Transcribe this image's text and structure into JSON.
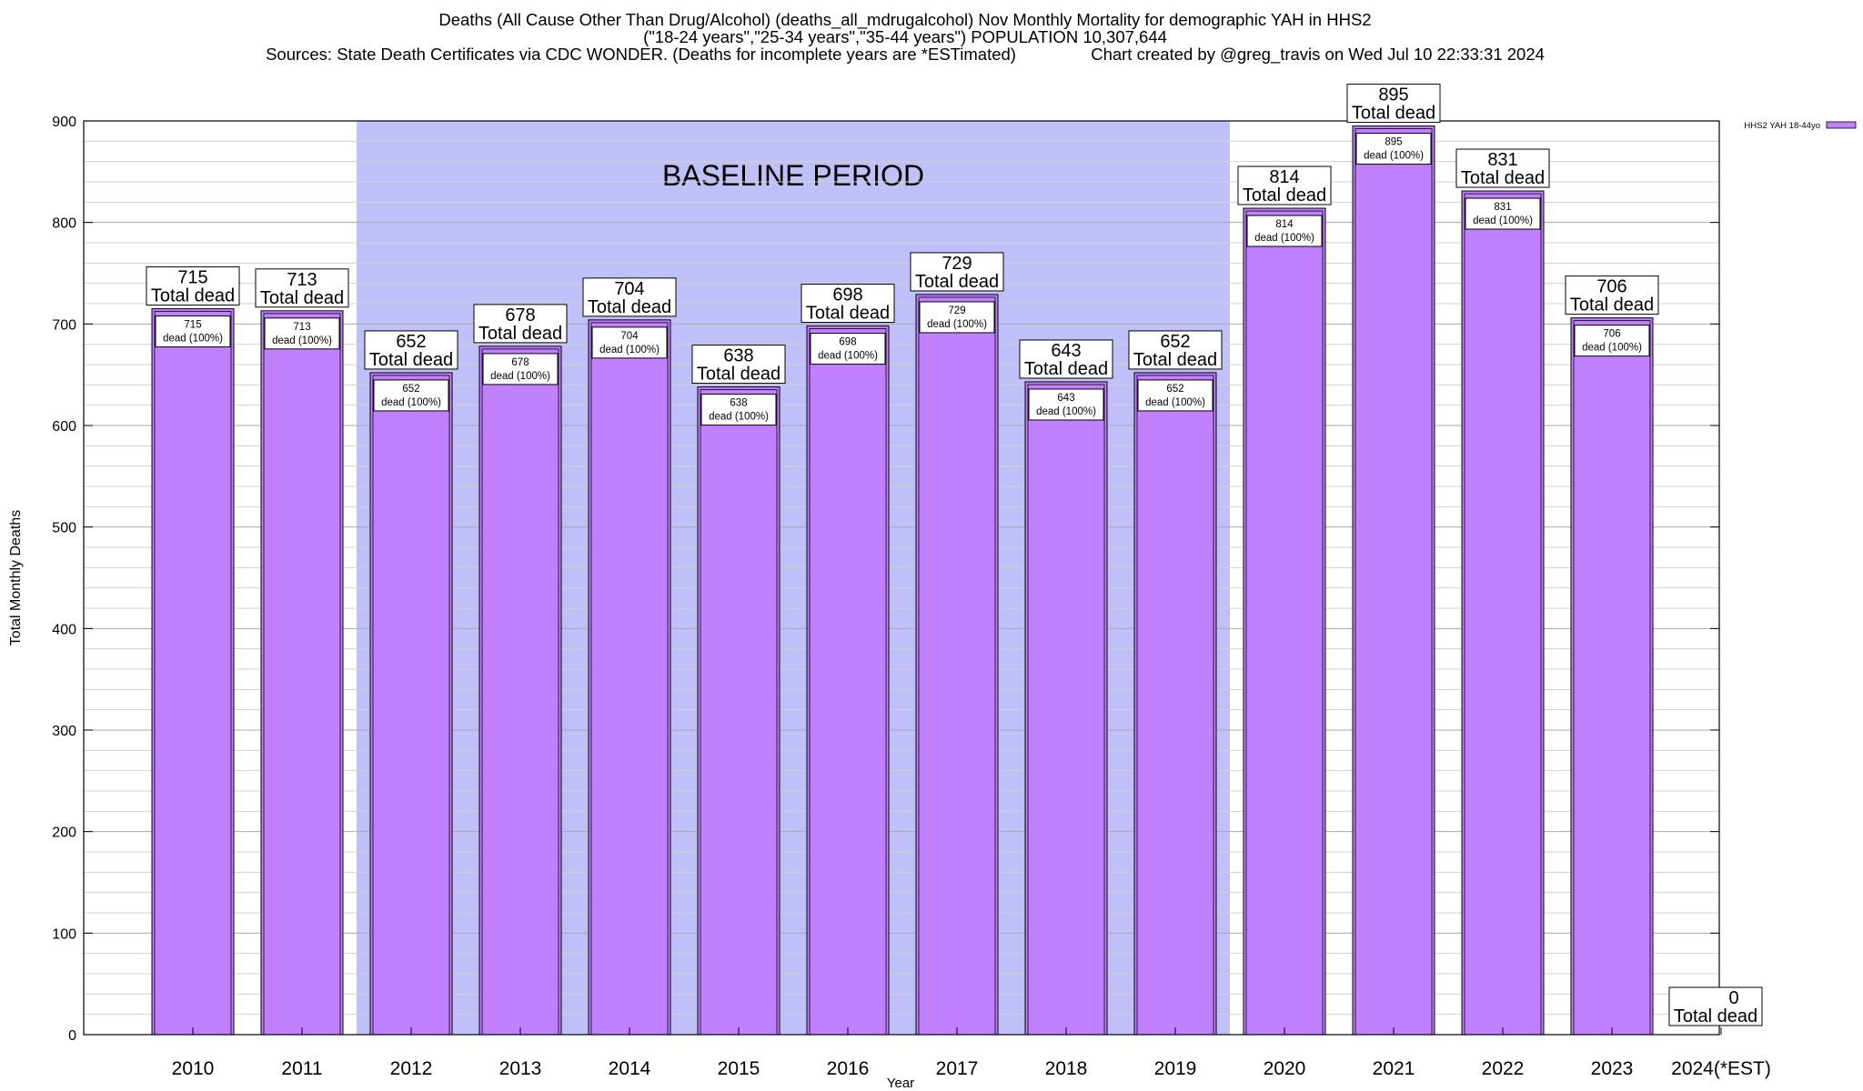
{
  "title": {
    "line1": "Deaths (All Cause Other Than Drug/Alcohol) (deaths_all_mdrugalcohol) Nov Monthly Mortality for demographic YAH in HHS2",
    "line2": "(\"18-24 years\",\"25-34 years\",\"35-44 years\") POPULATION 10,307,644",
    "line3": "Sources: State Death Certificates via CDC WONDER. (Deaths for incomplete years are *ESTimated)                Chart created by @greg_travis on Wed Jul 10 22:33:31 2024"
  },
  "colors": {
    "bar_fill": "#c080ff",
    "baseline_band": "#c0c0f8",
    "legend_swatch": "#c080ff"
  },
  "chart_data": {
    "type": "bar",
    "title": "Deaths (All Cause Other Than Drug/Alcohol) (deaths_all_mdrugalcohol) Nov Monthly Mortality for demographic YAH in HHS2",
    "xlabel": "Year",
    "ylabel": "Total Monthly Deaths",
    "ylim": [
      0,
      900
    ],
    "yticks": [
      0,
      100,
      200,
      300,
      400,
      500,
      600,
      700,
      800,
      900
    ],
    "grid": true,
    "legend_placement": "top-right",
    "categories": [
      "2010",
      "2011",
      "2012",
      "2013",
      "2014",
      "2015",
      "2016",
      "2017",
      "2018",
      "2019",
      "2020",
      "2021",
      "2022",
      "2023",
      "2024(*EST)"
    ],
    "series": [
      {
        "name": "HHS2 YAH 18-44yo",
        "values": [
          715,
          713,
          652,
          678,
          704,
          638,
          698,
          729,
          643,
          652,
          814,
          895,
          831,
          706,
          0
        ]
      }
    ],
    "total_label": "Total dead",
    "inner_label": "dead (100%)",
    "baseline_band": {
      "label": "BASELINE PERIOD",
      "from": "2012",
      "to": "2019"
    }
  }
}
